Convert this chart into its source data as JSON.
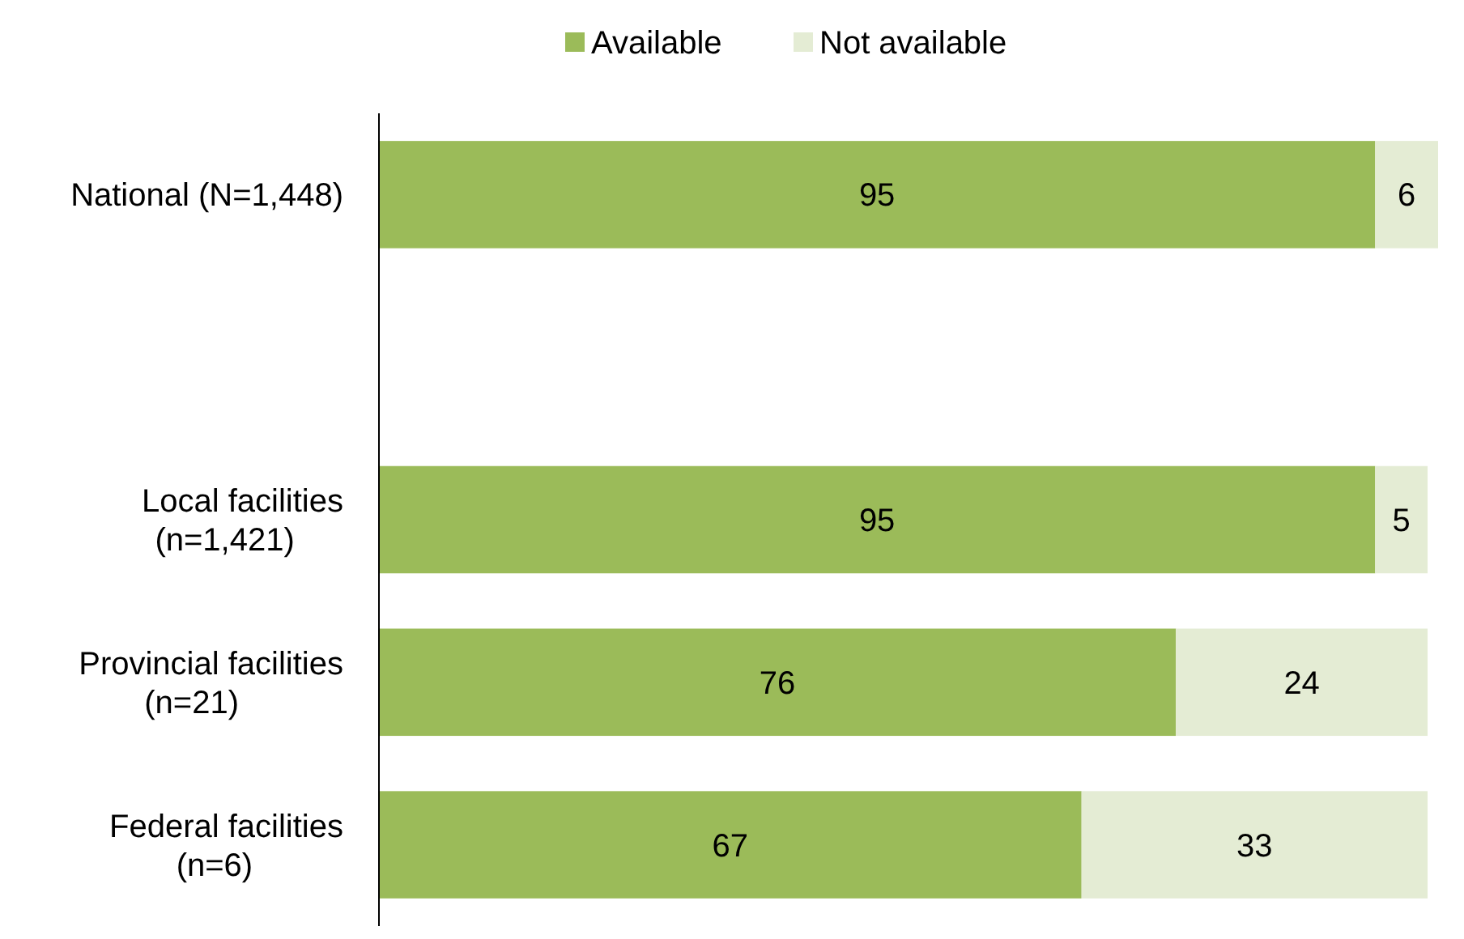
{
  "chart_data": {
    "type": "bar",
    "orientation": "horizontal",
    "stacked": true,
    "data_labels": true,
    "legend": "top",
    "grid": false,
    "categories": [
      "National (N=1,448)",
      null,
      "Local facilities\n(n=1,421)",
      "Provincial facilities\n(n=21)",
      "Federal facilities\n(n=6)"
    ],
    "series": [
      {
        "name": "Available",
        "color": "#9bbb59",
        "values": [
          95,
          null,
          95,
          76,
          67
        ]
      },
      {
        "name": "Not available",
        "color": "#e4ecd4",
        "values": [
          6,
          null,
          5,
          24,
          33
        ]
      }
    ]
  }
}
